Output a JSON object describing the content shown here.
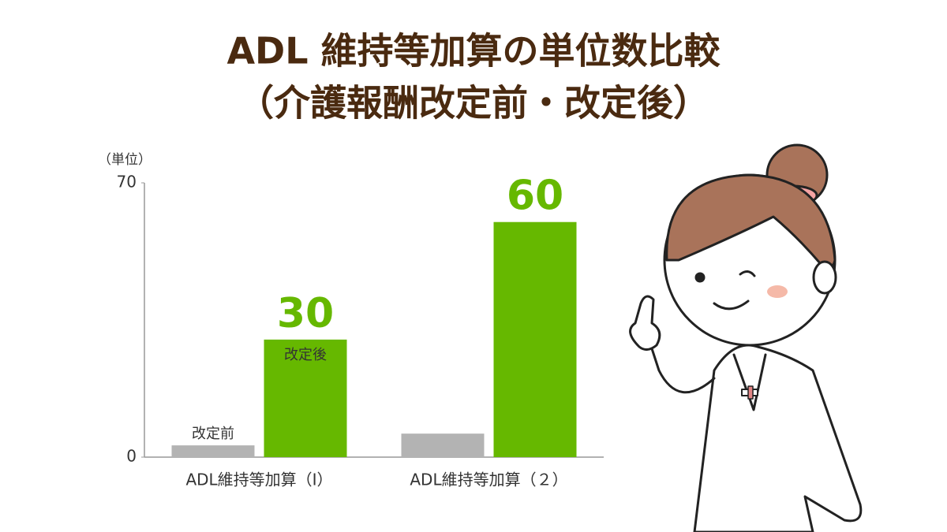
{
  "chart_data": {
    "type": "bar",
    "title": "ADL 維持等加算の単位数比較",
    "subtitle": "（介護報酬改定前・改定後）",
    "y_label": "（単位）",
    "categories": [
      "ADL維持等加算（Ⅰ）",
      "ADL維持等加算（２）"
    ],
    "series": [
      {
        "name": "改定前",
        "color": "#b3b3b3",
        "values": [
          3,
          6
        ]
      },
      {
        "name": "改定後",
        "color": "#66b800",
        "values": [
          30,
          60
        ]
      }
    ],
    "ylim": [
      0,
      70
    ],
    "yticks": [
      0,
      70
    ]
  }
}
